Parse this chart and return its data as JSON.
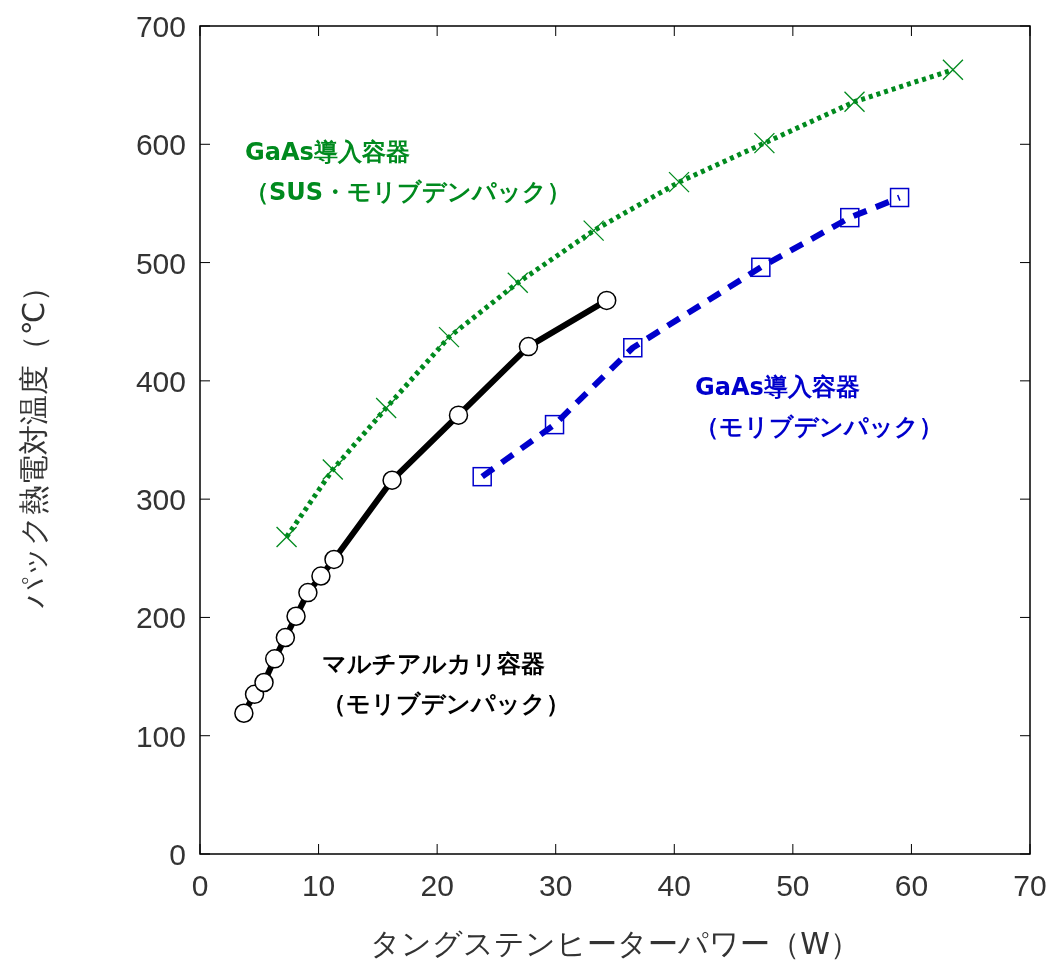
{
  "chart_data": {
    "type": "line",
    "xlabel": "タングステンヒーターパワー（W）",
    "ylabel": "パック熱電対温度（℃）",
    "xlim": [
      0,
      70
    ],
    "xticks": [
      0,
      10,
      20,
      30,
      40,
      50,
      60,
      70
    ],
    "ylim": [
      0,
      700
    ],
    "yticks": [
      0,
      100,
      200,
      300,
      400,
      500,
      600,
      700
    ],
    "series": [
      {
        "name": "マルチアルカリ容器（モリブデンパック）",
        "color": "#000000",
        "marker": "circle",
        "line_style": "solid",
        "x": [
          3.7,
          4.6,
          5.4,
          6.3,
          7.2,
          8.1,
          9.1,
          10.2,
          11.3,
          16.2,
          21.8,
          27.7,
          34.3
        ],
        "values": [
          119,
          135,
          145,
          165,
          183,
          201,
          221,
          235,
          249,
          316,
          371,
          429,
          468
        ]
      },
      {
        "name": "GaAs導入容器（SUS・モリブデンパック）",
        "color": "#008a1e",
        "marker": "cross",
        "line_style": "dotted",
        "x": [
          7.3,
          11.2,
          15.7,
          21.0,
          26.8,
          33.2,
          40.4,
          47.6,
          55.2,
          63.5
        ],
        "values": [
          268,
          325,
          377,
          437,
          483,
          527,
          568,
          601,
          636,
          663
        ]
      },
      {
        "name": "GaAs導入容器（モリブデンパック）",
        "color": "#0000cc",
        "marker": "square",
        "line_style": "dashed",
        "x": [
          23.8,
          29.9,
          36.5,
          47.3,
          54.8,
          59.0
        ],
        "values": [
          319,
          363,
          428,
          496,
          538,
          555
        ]
      }
    ]
  }
}
